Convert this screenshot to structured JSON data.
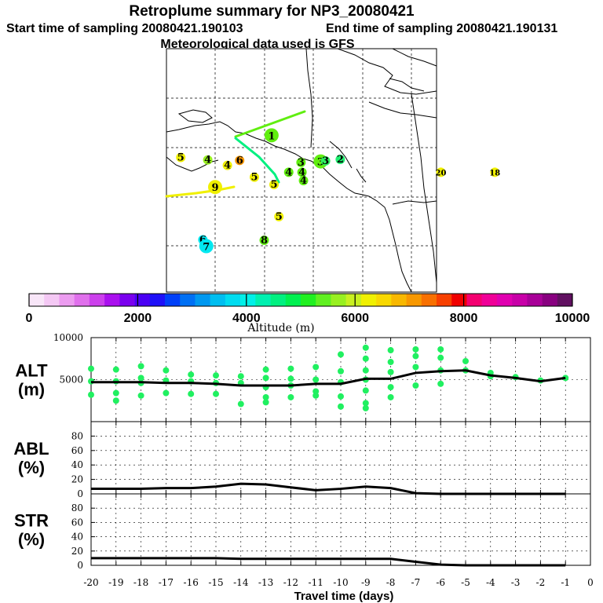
{
  "header": {
    "title": "Retroplume summary for NP3_20080421",
    "start_label": "Start time of sampling 20080421.190103",
    "end_label": "End time of sampling 20080421.190131",
    "met_label": "Meteorological data used is GFS"
  },
  "colorbar": {
    "ticks": [
      "0",
      "2000",
      "4000",
      "6000",
      "8000",
      "10000"
    ],
    "tick_values": [
      0,
      2000,
      4000,
      6000,
      8000,
      10000
    ],
    "label": "Altitude (m)",
    "colors": [
      "#f8e6f8",
      "#f4c8f4",
      "#ec9cf0",
      "#e070ec",
      "#cc40ec",
      "#aa10ee",
      "#7a00ee",
      "#4a00f4",
      "#1e10f8",
      "#0040f8",
      "#0070f4",
      "#0098f0",
      "#00bef0",
      "#00dcf0",
      "#00f0e8",
      "#00f0b0",
      "#00f080",
      "#00f050",
      "#20f020",
      "#60f020",
      "#98f020",
      "#c8f020",
      "#f0f000",
      "#f8d800",
      "#f8b800",
      "#f89800",
      "#f87000",
      "#f84000",
      "#f00000",
      "#f40070",
      "#f00098",
      "#e000b0",
      "#c800a8",
      "#a80098",
      "#880080",
      "#601060"
    ],
    "boxes_every": 4
  },
  "map": {
    "labels": [
      {
        "text": "1",
        "lon": -148.5,
        "lat": 62.5,
        "color": "#60ee10",
        "big": true
      },
      {
        "text": "2",
        "lon": -134.5,
        "lat": 57.6,
        "color": "#20f070",
        "big": false
      },
      {
        "text": "3",
        "lon": -138.5,
        "lat": 57.2,
        "color": "#60ee10",
        "big": true
      },
      {
        "text": "3",
        "lon": -142.5,
        "lat": 57.0,
        "color": "#60ee10",
        "big": false
      },
      {
        "text": "3",
        "lon": -137.5,
        "lat": 57.3,
        "color": "#30f060",
        "big": false
      },
      {
        "text": "4",
        "lon": -161.5,
        "lat": 57.5,
        "color": "#98f020",
        "big": false
      },
      {
        "text": "4",
        "lon": -145.0,
        "lat": 55.0,
        "color": "#60ee10",
        "big": false
      },
      {
        "text": "4",
        "lon": -142.3,
        "lat": 55.0,
        "color": "#60ee10",
        "big": false
      },
      {
        "text": "4",
        "lon": -142.0,
        "lat": 53.3,
        "color": "#60ee10",
        "big": false
      },
      {
        "text": "4",
        "lon": -157.5,
        "lat": 56.4,
        "color": "#f0f000",
        "big": false
      },
      {
        "text": "5",
        "lon": -167.0,
        "lat": 58.0,
        "color": "#f0f000",
        "big": false
      },
      {
        "text": "5",
        "lon": -152.0,
        "lat": 54.0,
        "color": "#f0f000",
        "big": false
      },
      {
        "text": "5",
        "lon": -148.0,
        "lat": 52.5,
        "color": "#f0f000",
        "big": false
      },
      {
        "text": "5",
        "lon": -147.0,
        "lat": 46.0,
        "color": "#f0f000",
        "big": false
      },
      {
        "text": "6",
        "lon": -155.0,
        "lat": 57.4,
        "color": "#f89800",
        "big": false
      },
      {
        "text": "6",
        "lon": -162.5,
        "lat": 41.3,
        "color": "#00e8f0",
        "big": false
      },
      {
        "text": "7",
        "lon": -161.8,
        "lat": 40.0,
        "color": "#00e8f0",
        "big": true
      },
      {
        "text": "8",
        "lon": -150.0,
        "lat": 41.2,
        "color": "#60ee10",
        "big": false
      },
      {
        "text": "9",
        "lon": -160.0,
        "lat": 52.0,
        "color": "#f0f000",
        "big": true
      },
      {
        "text": "18",
        "lon": -103.0,
        "lat": 55.0,
        "color": "#f0f000",
        "big": false
      },
      {
        "text": "20",
        "lon": -114.0,
        "lat": 55.0,
        "color": "#f0f000",
        "big": false
      }
    ]
  },
  "chart_data": [
    {
      "type": "scatter",
      "panel": "ALT",
      "ylabel": "ALT (m)",
      "ylabel_line1": "ALT",
      "ylabel_line2": "(m)",
      "ylim": [
        0,
        10000
      ],
      "yticks": [
        "5000",
        "10000"
      ],
      "ytick_values": [
        5000,
        10000
      ],
      "grid": true,
      "median_line": {
        "x": [
          -20,
          -19,
          -18,
          -17,
          -16,
          -15,
          -14,
          -13,
          -12,
          -11,
          -10,
          -9,
          -8,
          -7,
          -6,
          -5,
          -4,
          -3,
          -2,
          -1
        ],
        "y": [
          4700,
          4700,
          4700,
          4600,
          4600,
          4500,
          4300,
          4300,
          4300,
          4500,
          4500,
          5100,
          5100,
          5800,
          6000,
          6100,
          5500,
          5200,
          4800,
          5200
        ]
      },
      "points": [
        {
          "x": -20,
          "y": 6300
        },
        {
          "x": -20,
          "y": 4800
        },
        {
          "x": -20,
          "y": 3200
        },
        {
          "x": -19,
          "y": 6200
        },
        {
          "x": -19,
          "y": 4800
        },
        {
          "x": -19,
          "y": 3400
        },
        {
          "x": -19,
          "y": 2500
        },
        {
          "x": -18,
          "y": 6600
        },
        {
          "x": -18,
          "y": 5200
        },
        {
          "x": -18,
          "y": 4600
        },
        {
          "x": -18,
          "y": 3100
        },
        {
          "x": -17,
          "y": 6100
        },
        {
          "x": -17,
          "y": 4900
        },
        {
          "x": -17,
          "y": 3400
        },
        {
          "x": -16,
          "y": 5600
        },
        {
          "x": -16,
          "y": 4800
        },
        {
          "x": -16,
          "y": 3300
        },
        {
          "x": -15,
          "y": 5500
        },
        {
          "x": -15,
          "y": 4600
        },
        {
          "x": -15,
          "y": 3300
        },
        {
          "x": -14,
          "y": 5400
        },
        {
          "x": -14,
          "y": 4600
        },
        {
          "x": -14,
          "y": 2100
        },
        {
          "x": -13,
          "y": 6200
        },
        {
          "x": -13,
          "y": 5200
        },
        {
          "x": -13,
          "y": 4100
        },
        {
          "x": -13,
          "y": 2900
        },
        {
          "x": -13,
          "y": 2300
        },
        {
          "x": -12,
          "y": 6300
        },
        {
          "x": -12,
          "y": 5100
        },
        {
          "x": -12,
          "y": 4300
        },
        {
          "x": -12,
          "y": 2900
        },
        {
          "x": -11,
          "y": 6500
        },
        {
          "x": -11,
          "y": 5000
        },
        {
          "x": -11,
          "y": 3600
        },
        {
          "x": -11,
          "y": 3100
        },
        {
          "x": -10,
          "y": 8000
        },
        {
          "x": -10,
          "y": 6000
        },
        {
          "x": -10,
          "y": 4700
        },
        {
          "x": -10,
          "y": 3000
        },
        {
          "x": -10,
          "y": 1800
        },
        {
          "x": -9,
          "y": 8800
        },
        {
          "x": -9,
          "y": 7500
        },
        {
          "x": -9,
          "y": 6100
        },
        {
          "x": -9,
          "y": 5000
        },
        {
          "x": -9,
          "y": 3700
        },
        {
          "x": -9,
          "y": 2200
        },
        {
          "x": -9,
          "y": 1600
        },
        {
          "x": -8,
          "y": 8500
        },
        {
          "x": -8,
          "y": 7100
        },
        {
          "x": -8,
          "y": 5900
        },
        {
          "x": -8,
          "y": 4100
        },
        {
          "x": -8,
          "y": 2900
        },
        {
          "x": -7,
          "y": 8600
        },
        {
          "x": -7,
          "y": 7800
        },
        {
          "x": -7,
          "y": 6500
        },
        {
          "x": -7,
          "y": 4300
        },
        {
          "x": -6,
          "y": 8600
        },
        {
          "x": -6,
          "y": 7600
        },
        {
          "x": -6,
          "y": 6100
        },
        {
          "x": -6,
          "y": 4500
        },
        {
          "x": -5,
          "y": 7200
        },
        {
          "x": -5,
          "y": 6100
        },
        {
          "x": -4,
          "y": 5800
        },
        {
          "x": -4,
          "y": 5400
        },
        {
          "x": -3,
          "y": 5300
        },
        {
          "x": -2,
          "y": 4900
        },
        {
          "x": -1,
          "y": 5200
        }
      ]
    },
    {
      "type": "line",
      "panel": "ABL",
      "ylabel": "ABL (%)",
      "ylabel_line1": "ABL",
      "ylabel_line2": "(%)",
      "ylim": [
        0,
        100
      ],
      "yticks": [
        "0",
        "20",
        "40",
        "60",
        "80"
      ],
      "ytick_values": [
        0,
        20,
        40,
        60,
        80
      ],
      "grid": true,
      "x": [
        -20,
        -19,
        -18,
        -17,
        -16,
        -15,
        -14,
        -13,
        -12,
        -11,
        -10,
        -9,
        -8,
        -7,
        -6,
        -5,
        -4,
        -3,
        -2,
        -1
      ],
      "y": [
        7,
        7,
        7,
        8,
        8,
        10,
        14,
        13,
        9,
        5,
        7,
        10,
        8,
        1,
        0,
        0,
        0,
        0,
        0,
        0
      ]
    },
    {
      "type": "line",
      "panel": "STR",
      "ylabel": "STR (%)",
      "ylabel_line1": "STR",
      "ylabel_line2": "(%)",
      "ylim": [
        0,
        100
      ],
      "yticks": [
        "0",
        "20",
        "40",
        "60",
        "80"
      ],
      "ytick_values": [
        0,
        20,
        40,
        60,
        80
      ],
      "grid": true,
      "xlabel": "Travel time (days)",
      "xlim": [
        -20,
        0
      ],
      "xticks": [
        "-20",
        "-19",
        "-18",
        "-17",
        "-16",
        "-15",
        "-14",
        "-13",
        "-12",
        "-11",
        "-10",
        "-9",
        "-8",
        "-7",
        "-6",
        "-5",
        "-4",
        "-3",
        "-2",
        "-1",
        "0"
      ],
      "xtick_values": [
        -20,
        -19,
        -18,
        -17,
        -16,
        -15,
        -14,
        -13,
        -12,
        -11,
        -10,
        -9,
        -8,
        -7,
        -6,
        -5,
        -4,
        -3,
        -2,
        -1,
        0
      ],
      "x": [
        -20,
        -19,
        -18,
        -17,
        -16,
        -15,
        -14,
        -13,
        -12,
        -11,
        -10,
        -9,
        -8,
        -7,
        -6,
        -5,
        -4,
        -3,
        -2,
        -1
      ],
      "y": [
        10,
        10,
        10,
        10,
        10,
        10,
        9,
        9,
        9,
        9,
        9,
        9,
        9,
        5,
        1,
        0,
        0,
        0,
        0,
        0
      ]
    }
  ]
}
